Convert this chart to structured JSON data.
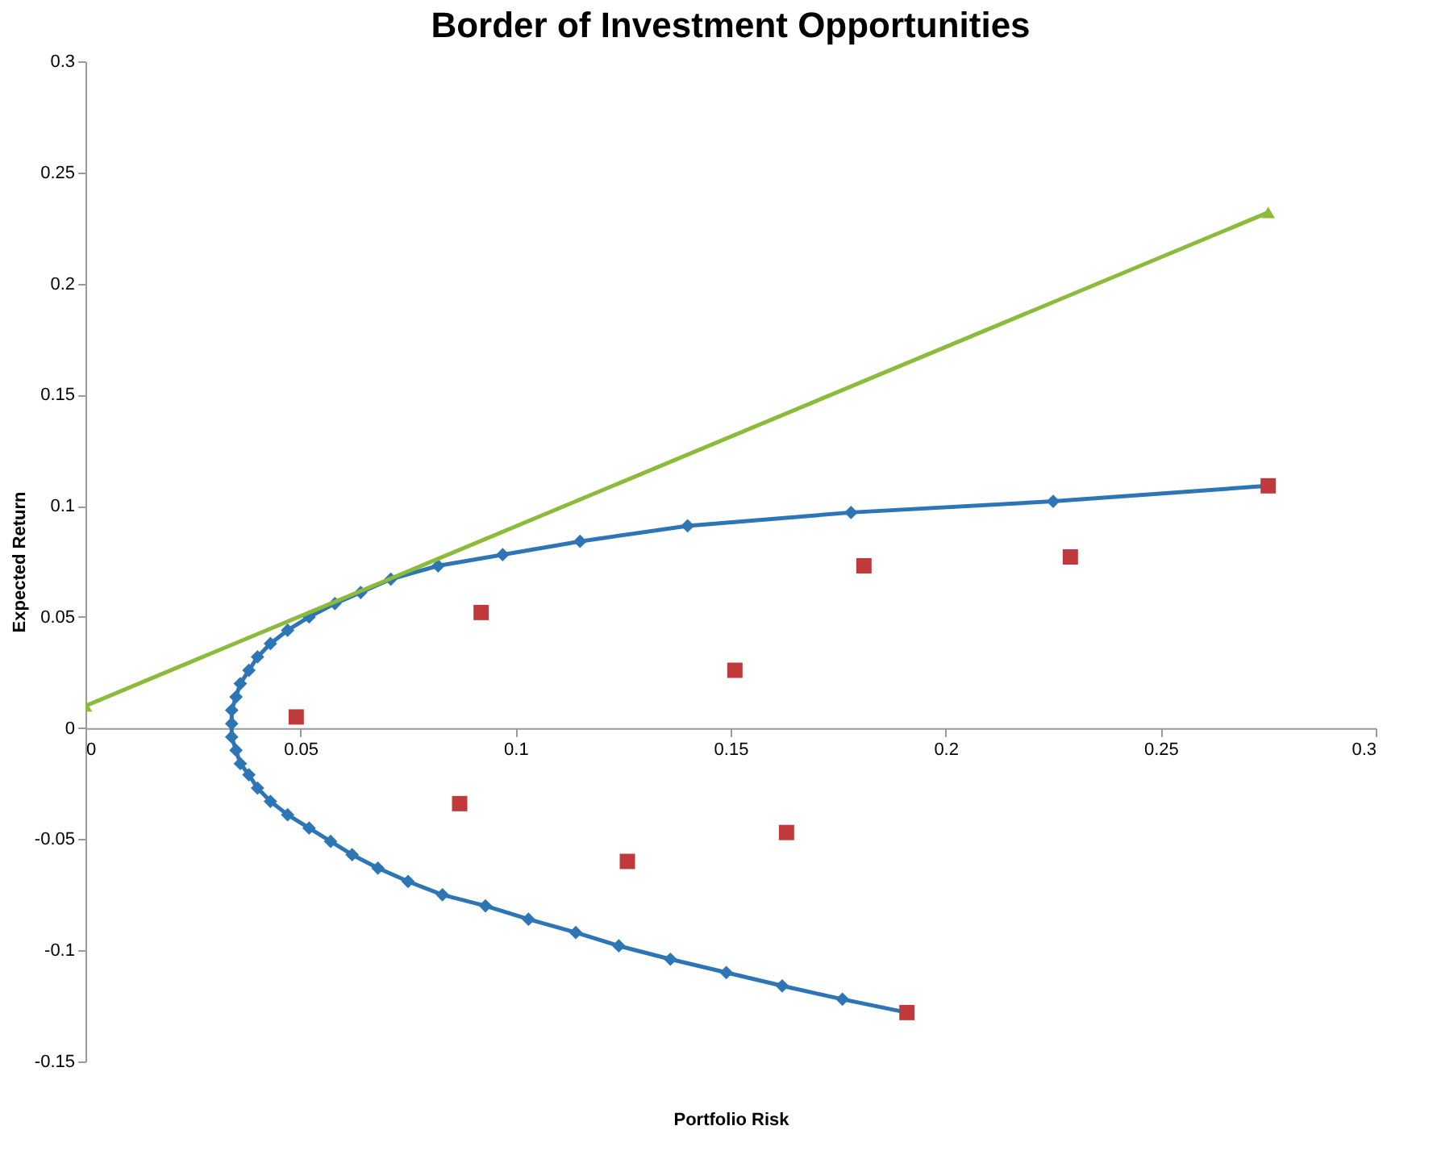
{
  "chart_data": {
    "type": "line",
    "title": "Border of Investment Opportunities",
    "xlabel": "Portfolio Risk",
    "ylabel": "Expected Return",
    "xlim": [
      0,
      0.3
    ],
    "xticks": [
      0,
      0.05,
      0.1,
      0.15,
      0.2,
      0.25,
      0.3
    ],
    "ylim": [
      -0.15,
      0.3
    ],
    "yticks": [
      -0.15,
      -0.1,
      -0.05,
      0,
      0.05,
      0.1,
      0.15,
      0.2,
      0.25,
      0.3
    ],
    "grid": false,
    "series": [
      {
        "marker": "diamond",
        "color": "#2e75b6",
        "x": [
          0.191,
          0.176,
          0.162,
          0.149,
          0.136,
          0.124,
          0.114,
          0.103,
          0.093,
          0.083,
          0.075,
          0.068,
          0.062,
          0.057,
          0.052,
          0.047,
          0.043,
          0.04,
          0.038,
          0.036,
          0.035,
          0.034,
          0.034,
          0.034,
          0.035,
          0.036,
          0.038,
          0.04,
          0.043,
          0.047,
          0.052,
          0.058,
          0.064,
          0.071,
          0.082,
          0.097,
          0.115,
          0.14,
          0.178,
          0.225,
          0.275
        ],
        "values": [
          -0.128,
          -0.122,
          -0.116,
          -0.11,
          -0.104,
          -0.098,
          -0.092,
          -0.086,
          -0.08,
          -0.075,
          -0.069,
          -0.063,
          -0.057,
          -0.051,
          -0.045,
          -0.039,
          -0.033,
          -0.027,
          -0.021,
          -0.016,
          -0.01,
          -0.004,
          0.002,
          0.008,
          0.014,
          0.02,
          0.026,
          0.032,
          0.038,
          0.044,
          0.05,
          0.056,
          0.061,
          0.067,
          0.073,
          0.078,
          0.084,
          0.091,
          0.097,
          0.102,
          0.109
        ]
      },
      {
        "type": "scatter",
        "marker": "square",
        "color": "#c0393b",
        "x": [
          0.049,
          0.092,
          0.087,
          0.126,
          0.151,
          0.163,
          0.181,
          0.229,
          0.275,
          0.191
        ],
        "values": [
          0.005,
          0.052,
          -0.034,
          -0.06,
          0.026,
          -0.047,
          0.073,
          0.077,
          0.109,
          -0.128
        ]
      },
      {
        "marker": "triangle",
        "color": "#8cbb3c",
        "x": [
          0,
          0.275
        ],
        "values": [
          0.01,
          0.232
        ]
      }
    ]
  }
}
